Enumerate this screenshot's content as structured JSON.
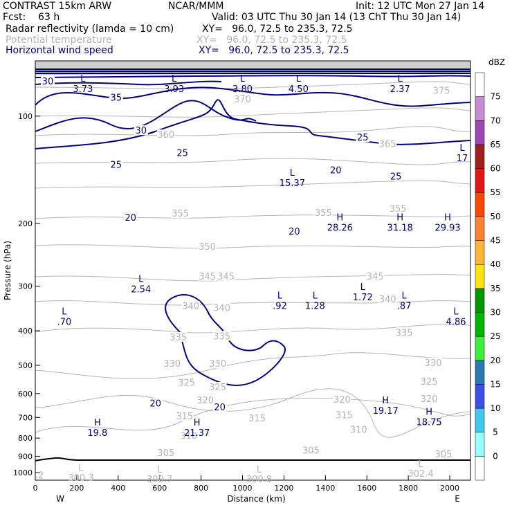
{
  "header": {
    "model": "CONTRAST 15km ARW",
    "org": "NCAR/MMM",
    "init": "Init: 12 UTC Mon 27 Jan 14",
    "fcst": "Fcst:    63 h",
    "valid": "Valid: 03 UTC Thu 30 Jan 14 (13 ChT Thu 30 Jan 14)",
    "fields": [
      {
        "label": "Radar reflectivity (lamda = 10 cm)",
        "xy": "XY=   96.0, 72.5 to 235.3, 72.5",
        "color": "#000000"
      },
      {
        "label": "Potential temperature",
        "xy": "XY=   96.0, 72.5 to 235.3, 72.5",
        "color": "#b4b4b4"
      },
      {
        "label": "Horizontal wind speed",
        "xy": "XY=   96.0, 72.5 to 235.3, 72.5",
        "color": "#000080"
      }
    ]
  },
  "chart_data": {
    "type": "contour",
    "xlabel": "Distance (km)",
    "ylabel": "Pressure (hPa)",
    "xlim": [
      0,
      2100
    ],
    "ylim": [
      1050,
      70
    ],
    "x_ticks": [
      0,
      200,
      400,
      600,
      800,
      1000,
      1200,
      1400,
      1600,
      1800,
      2000
    ],
    "y_ticks": [
      100,
      200,
      300,
      400,
      500,
      600,
      700,
      800,
      900,
      1000
    ],
    "x_end_labels": {
      "left": "W",
      "right": "E"
    },
    "colorbar": {
      "unit": "dBZ",
      "levels": [
        0,
        5,
        10,
        15,
        20,
        25,
        30,
        35,
        40,
        45,
        50,
        55,
        60,
        65,
        70,
        75
      ],
      "colors": [
        "#ffffff",
        "#96ffff",
        "#3cc8f0",
        "#3c50e6",
        "#2878b4",
        "#3cf03c",
        "#00b400",
        "#009600",
        "#ffe600",
        "#ffb43c",
        "#fa8232",
        "#ff4600",
        "#e61414",
        "#a01e1e",
        "#9b46b4",
        "#c88cd2",
        "#ffffff"
      ]
    },
    "theta_labels": [
      {
        "text": "305",
        "x": 630,
        "p": 882
      },
      {
        "text": "305",
        "x": 1330,
        "p": 868
      },
      {
        "text": "305",
        "x": 1970,
        "p": 890
      },
      {
        "text": "310",
        "x": 740,
        "p": 790
      },
      {
        "text": "310",
        "x": 1560,
        "p": 760
      },
      {
        "text": "315",
        "x": 720,
        "p": 696
      },
      {
        "text": "315",
        "x": 1070,
        "p": 706
      },
      {
        "text": "315",
        "x": 1490,
        "p": 692
      },
      {
        "text": "320",
        "x": 820,
        "p": 628
      },
      {
        "text": "320",
        "x": 1480,
        "p": 625
      },
      {
        "text": "320",
        "x": 1900,
        "p": 622
      },
      {
        "text": "325",
        "x": 730,
        "p": 560
      },
      {
        "text": "325",
        "x": 880,
        "p": 577
      },
      {
        "text": "325",
        "x": 1900,
        "p": 557
      },
      {
        "text": "330",
        "x": 660,
        "p": 496
      },
      {
        "text": "330",
        "x": 880,
        "p": 496
      },
      {
        "text": "330",
        "x": 1920,
        "p": 493
      },
      {
        "text": "335",
        "x": 690,
        "p": 418
      },
      {
        "text": "335",
        "x": 900,
        "p": 415
      },
      {
        "text": "335",
        "x": 1780,
        "p": 406
      },
      {
        "text": "340",
        "x": 750,
        "p": 342
      },
      {
        "text": "340",
        "x": 900,
        "p": 346
      },
      {
        "text": "340",
        "x": 1700,
        "p": 327
      },
      {
        "text": "345",
        "x": 830,
        "p": 282
      },
      {
        "text": "345",
        "x": 920,
        "p": 282
      },
      {
        "text": "345",
        "x": 1640,
        "p": 282
      },
      {
        "text": "350",
        "x": 830,
        "p": 233
      },
      {
        "text": "355",
        "x": 700,
        "p": 188
      },
      {
        "text": "355",
        "x": 1390,
        "p": 187
      },
      {
        "text": "355",
        "x": 1750,
        "p": 182
      },
      {
        "text": "360",
        "x": 630,
        "p": 113
      },
      {
        "text": "365",
        "x": 1700,
        "p": 120
      },
      {
        "text": "370",
        "x": 1000,
        "p": 90
      },
      {
        "text": "375",
        "x": 1960,
        "p": 85
      }
    ],
    "wind_labels": [
      {
        "text": "30",
        "x": 60,
        "p": 80
      },
      {
        "text": "35",
        "x": 390,
        "p": 89
      },
      {
        "text": "30",
        "x": 510,
        "p": 110
      },
      {
        "text": "25",
        "x": 710,
        "p": 127
      },
      {
        "text": "25",
        "x": 390,
        "p": 137
      },
      {
        "text": "20",
        "x": 460,
        "p": 193
      },
      {
        "text": "25",
        "x": 1580,
        "p": 115
      },
      {
        "text": "20",
        "x": 1450,
        "p": 142
      },
      {
        "text": "25",
        "x": 1740,
        "p": 148
      },
      {
        "text": "20",
        "x": 1250,
        "p": 211
      },
      {
        "text": "20",
        "x": 580,
        "p": 641
      },
      {
        "text": "20",
        "x": 890,
        "p": 657
      }
    ],
    "extrema": [
      {
        "type": "L",
        "value": "3.73",
        "x": 230,
        "p": 80
      },
      {
        "type": "L",
        "value": "3.93",
        "x": 670,
        "p": 80
      },
      {
        "type": "L",
        "value": "3.80",
        "x": 1000,
        "p": 80
      },
      {
        "type": "L",
        "value": "4.50",
        "x": 1270,
        "p": 80
      },
      {
        "type": "L",
        "value": "2.37",
        "x": 1760,
        "p": 80
      },
      {
        "type": "L",
        "value": "17",
        "x": 2060,
        "p": 125
      },
      {
        "type": "L",
        "value": "15.37",
        "x": 1240,
        "p": 147
      },
      {
        "type": "H",
        "value": "28.26",
        "x": 1470,
        "p": 196
      },
      {
        "type": "H",
        "value": "31.18",
        "x": 1760,
        "p": 196
      },
      {
        "type": "H",
        "value": "29.93",
        "x": 1990,
        "p": 196
      },
      {
        "type": "L",
        "value": "2.54",
        "x": 510,
        "p": 292
      },
      {
        "type": "L",
        "value": ".92",
        "x": 1180,
        "p": 325
      },
      {
        "type": "L",
        "value": "1.28",
        "x": 1350,
        "p": 325
      },
      {
        "type": "L",
        "value": "1.72",
        "x": 1580,
        "p": 307
      },
      {
        "type": "L",
        "value": ".87",
        "x": 1780,
        "p": 325
      },
      {
        "type": "L",
        "value": ".70",
        "x": 140,
        "p": 360
      },
      {
        "type": "L",
        "value": "4.86",
        "x": 2030,
        "p": 360
      },
      {
        "type": "H",
        "value": "19.17",
        "x": 1690,
        "p": 640
      },
      {
        "type": "H",
        "value": "18.75",
        "x": 1900,
        "p": 688
      },
      {
        "type": "H",
        "value": "19.8",
        "x": 300,
        "p": 738
      },
      {
        "type": "H",
        "value": "21.37",
        "x": 780,
        "p": 738
      }
    ],
    "surface_theta": [
      {
        "type": "L",
        "value": "300.3",
        "x": 220,
        "p": 990
      },
      {
        "type": "L",
        "value": "300.7",
        "x": 600,
        "p": 1000
      },
      {
        "type": "L",
        "value": "300.8",
        "x": 1080,
        "p": 1000
      },
      {
        "type": "L",
        "value": "302.4",
        "x": 1860,
        "p": 965
      },
      {
        "type": "",
        "value": ".2",
        "x": 20,
        "p": 975
      }
    ]
  }
}
